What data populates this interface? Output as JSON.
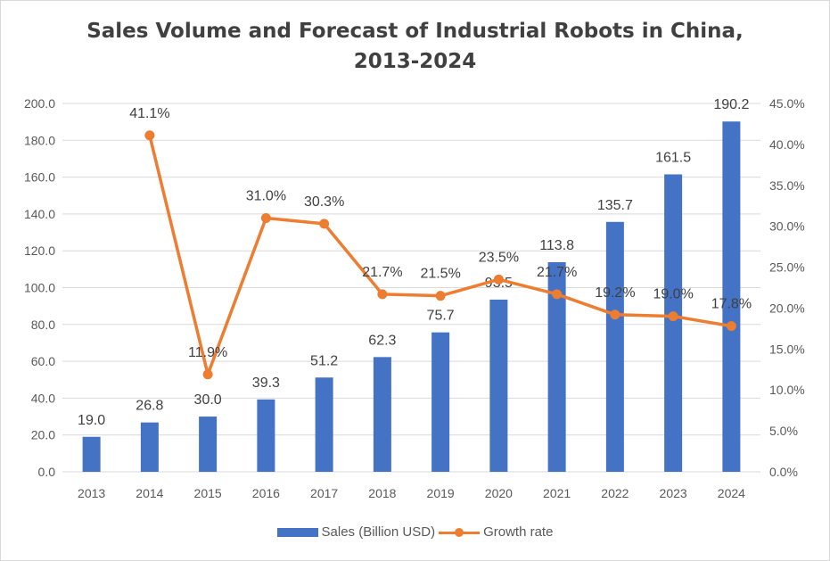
{
  "title_line1": "Sales Volume and Forecast of Industrial Robots in China,",
  "title_line2": "2013-2024",
  "colors": {
    "bar": "#4472c4",
    "line": "#ed7d31",
    "grid": "#d9d9d9"
  },
  "chart_data": {
    "type": "bar",
    "title": "Sales Volume and Forecast of Industrial Robots in China, 2013-2024",
    "categories": [
      "2013",
      "2014",
      "2015",
      "2016",
      "2017",
      "2018",
      "2019",
      "2020",
      "2021",
      "2022",
      "2023",
      "2024"
    ],
    "series": [
      {
        "name": "Sales (Billion USD)",
        "type": "bar",
        "axis": "left",
        "values": [
          19.0,
          26.8,
          30.0,
          39.3,
          51.2,
          62.3,
          75.7,
          93.5,
          113.8,
          135.7,
          161.5,
          190.2
        ],
        "labels": [
          "19.0",
          "26.8",
          "30.0",
          "39.3",
          "51.2",
          "62.3",
          "75.7",
          "93.5",
          "113.8",
          "135.7",
          "161.5",
          "190.2"
        ]
      },
      {
        "name": "Growth rate",
        "type": "line",
        "axis": "right",
        "values": [
          null,
          41.1,
          11.9,
          31.0,
          30.3,
          21.7,
          21.5,
          23.5,
          21.7,
          19.2,
          19.0,
          17.8
        ],
        "labels": [
          "",
          "41.1%",
          "11.9%",
          "31.0%",
          "30.3%",
          "21.7%",
          "21.5%",
          "23.5%",
          "21.7%",
          "19.2%",
          "19.0%",
          "17.8%"
        ]
      }
    ],
    "y_left": {
      "range": [
        0,
        200
      ],
      "ticks": [
        0,
        20,
        40,
        60,
        80,
        100,
        120,
        140,
        160,
        180,
        200
      ],
      "tick_labels": [
        "0.0",
        "20.0",
        "40.0",
        "60.0",
        "80.0",
        "100.0",
        "120.0",
        "140.0",
        "160.0",
        "180.0",
        "200.0"
      ]
    },
    "y_right": {
      "range": [
        0,
        45
      ],
      "ticks": [
        0,
        5,
        10,
        15,
        20,
        25,
        30,
        35,
        40,
        45
      ],
      "tick_labels": [
        "0.0%",
        "5.0%",
        "10.0%",
        "15.0%",
        "20.0%",
        "25.0%",
        "30.0%",
        "35.0%",
        "40.0%",
        "45.0%"
      ]
    },
    "grid": true,
    "legend_position": "bottom"
  }
}
